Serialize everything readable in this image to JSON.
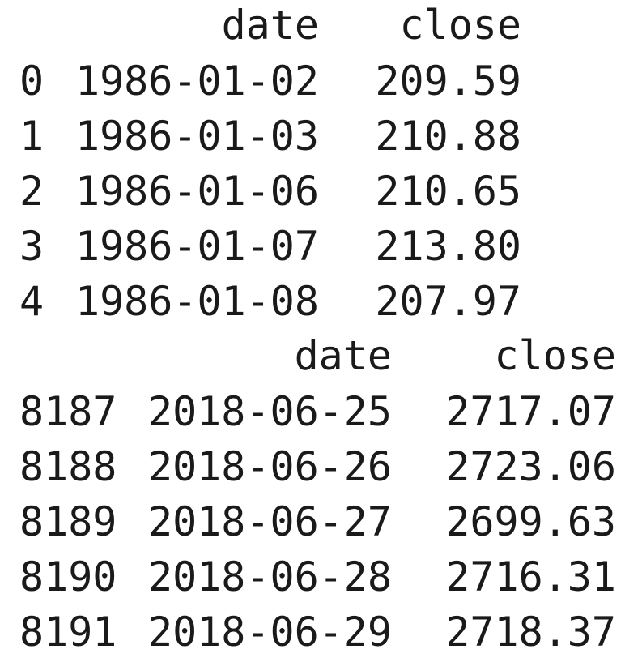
{
  "frames": [
    {
      "columns": [
        "date",
        "close"
      ],
      "rows": [
        {
          "index": "0",
          "date": "1986-01-02",
          "close": "209.59"
        },
        {
          "index": "1",
          "date": "1986-01-03",
          "close": "210.88"
        },
        {
          "index": "2",
          "date": "1986-01-06",
          "close": "210.65"
        },
        {
          "index": "3",
          "date": "1986-01-07",
          "close": "213.80"
        },
        {
          "index": "4",
          "date": "1986-01-08",
          "close": "207.97"
        }
      ]
    },
    {
      "columns": [
        "date",
        "close"
      ],
      "rows": [
        {
          "index": "8187",
          "date": "2018-06-25",
          "close": "2717.07"
        },
        {
          "index": "8188",
          "date": "2018-06-26",
          "close": "2723.06"
        },
        {
          "index": "8189",
          "date": "2018-06-27",
          "close": "2699.63"
        },
        {
          "index": "8190",
          "date": "2018-06-28",
          "close": "2716.31"
        },
        {
          "index": "8191",
          "date": "2018-06-29",
          "close": "2718.37"
        }
      ]
    }
  ]
}
